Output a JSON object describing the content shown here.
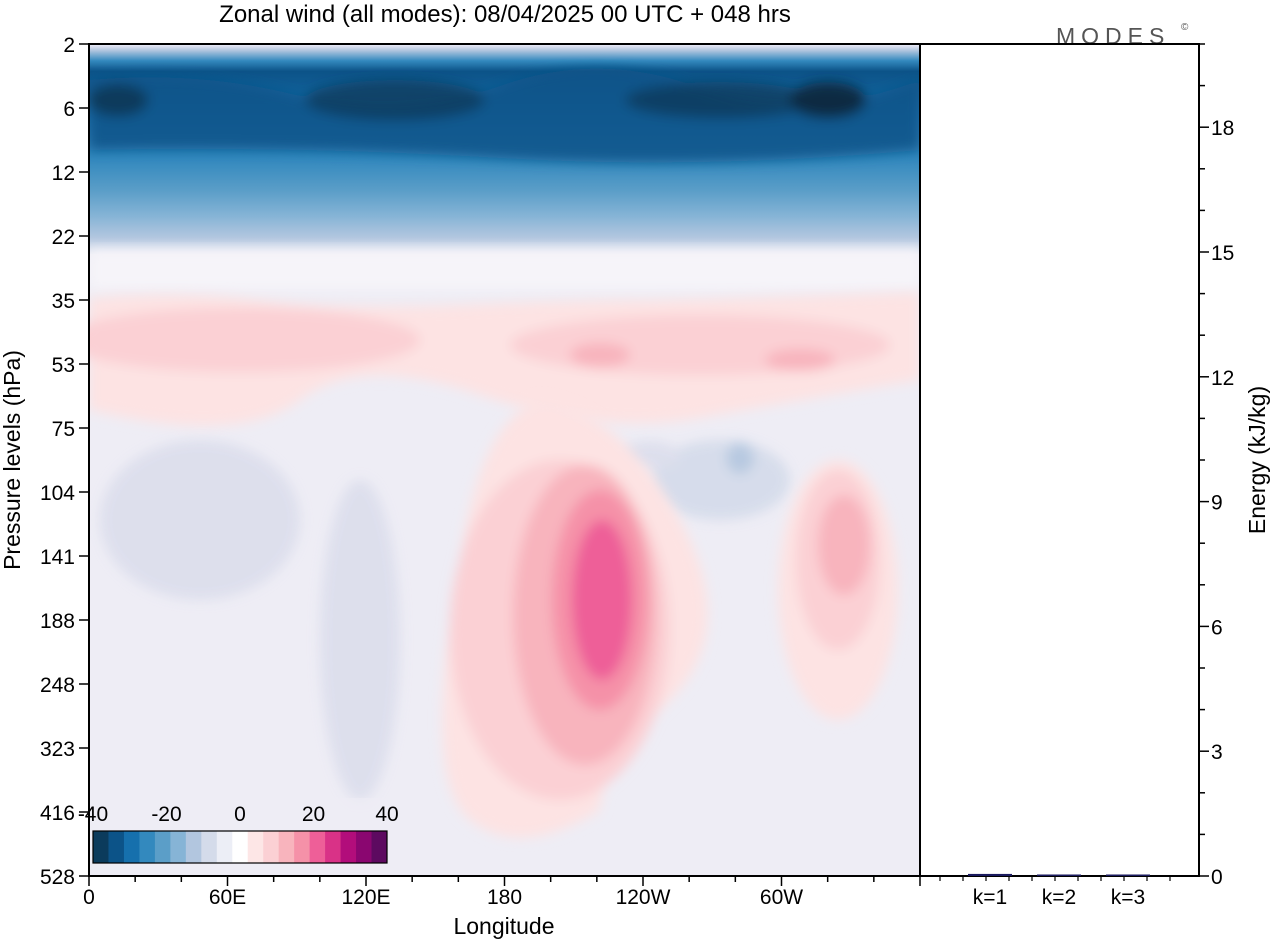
{
  "chart_data": [
    {
      "type": "heatmap",
      "title": "Zonal wind (all modes):  08/04/2025  00 UTC  + 048 hrs",
      "xlabel": "Longitude",
      "ylabel": "Pressure levels (hPa)",
      "x_ticks": [
        "0",
        "60E",
        "120E",
        "180",
        "120W",
        "60W"
      ],
      "y_ticks": [
        "2",
        "6",
        "12",
        "22",
        "35",
        "53",
        "75",
        "104",
        "141",
        "188",
        "248",
        "323",
        "416",
        "528"
      ],
      "colorbar": {
        "ticks": [
          "-40",
          "-20",
          "0",
          "20",
          "40"
        ],
        "range": [
          -40,
          40
        ],
        "colors": [
          "#0b3b5c",
          "#0c5388",
          "#1670ad",
          "#3389be",
          "#5b9ec8",
          "#86b4d6",
          "#b2c6df",
          "#d4dbea",
          "#eceef6",
          "#ffffff",
          "#fde6e6",
          "#fbd0d4",
          "#f8b4bd",
          "#f591a8",
          "#ee5f98",
          "#d93287",
          "#b20d7b",
          "#8a0670",
          "#5d0a60"
        ]
      },
      "features": [
        {
          "lon_from": 0,
          "lon_to": 360,
          "p_from": 2,
          "p_to": 20,
          "u": -30
        },
        {
          "lon_from": 0,
          "lon_to": 360,
          "p_from": 35,
          "p_to": 70,
          "u": 6
        },
        {
          "lon_from": 200,
          "lon_to": 250,
          "p_from": 90,
          "p_to": 300,
          "u": 22
        },
        {
          "lon_from": 290,
          "lon_to": 340,
          "p_from": 100,
          "p_to": 190,
          "u": 10
        },
        {
          "lon_from": 0,
          "lon_to": 360,
          "p_from": 75,
          "p_to": 528,
          "u": -2
        }
      ]
    },
    {
      "type": "bar",
      "ylabel": "Energy (kJ/kg)",
      "categories": [
        "k=1",
        "k=2",
        "k=3"
      ],
      "values": [
        0.05,
        0.02,
        0.03
      ],
      "ylim": [
        0,
        20
      ],
      "y_ticks": [
        "0",
        "3",
        "6",
        "9",
        "12",
        "15",
        "18"
      ]
    }
  ],
  "brand": "MODES",
  "brand_mark": "©"
}
